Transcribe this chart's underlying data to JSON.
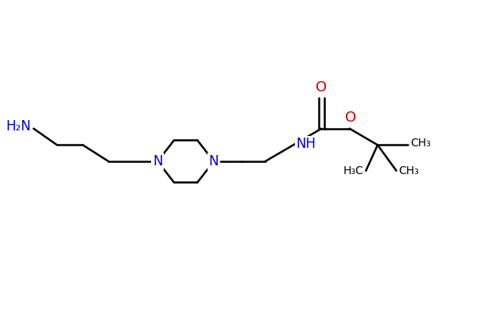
{
  "bg_color": "#ffffff",
  "bond_color": "#000000",
  "nitrogen_color": "#0000cc",
  "oxygen_color": "#cc0000",
  "line_width": 1.8,
  "font_size": 12,
  "small_font_size": 10,
  "xlim": [
    0.0,
    10.0
  ],
  "ylim": [
    0.5,
    4.0
  ],
  "figsize": [
    6.0,
    4.0
  ],
  "dpi": 100
}
